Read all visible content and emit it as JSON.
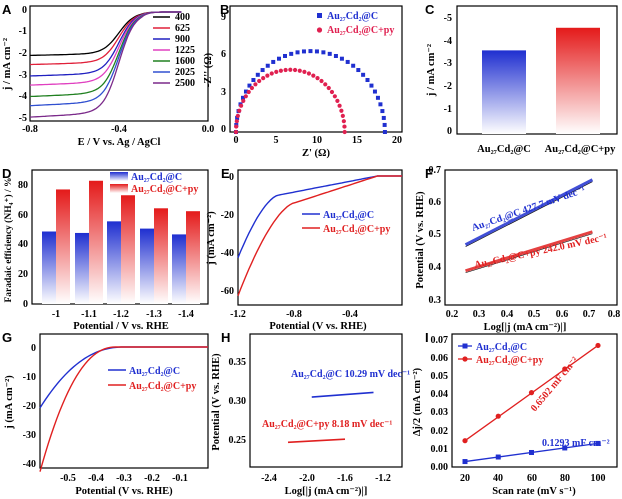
{
  "panels": {
    "A": {
      "letter": "A",
      "xlabel": "E / V vs. Ag / AgCl",
      "ylabel": "j / mA cm⁻²",
      "xticks": [
        "-0.8",
        "-0.4",
        "0.0"
      ],
      "yticks": [
        "0",
        "-1",
        "-2",
        "-3",
        "-4",
        "-5"
      ],
      "legend": [
        "400",
        "625",
        "900",
        "1225",
        "1600",
        "2025",
        "2500"
      ],
      "colors": [
        "#000000",
        "#e0203a",
        "#2020c0",
        "#e040c0",
        "#208020",
        "#3050d0",
        "#7b2a8a"
      ]
    },
    "B": {
      "letter": "B",
      "xlabel": "Z' (Ω)",
      "ylabel": "-Z'' (Ω)",
      "xticks": [
        "0",
        "5",
        "10",
        "15",
        "20"
      ],
      "yticks": [
        "0",
        "3",
        "6",
        "9"
      ],
      "legend": [
        "Au₂₇Cd₂@C",
        "Au₂₇Cd₂@C+py"
      ]
    },
    "C": {
      "letter": "C",
      "ylabel": "j / mA cm⁻²",
      "yticks": [
        "0",
        "-1",
        "-2",
        "-3",
        "-4",
        "-5"
      ],
      "categories": [
        "Au₂₇Cd₂@C",
        "Au₂₇Cd₂@C+py"
      ]
    },
    "D": {
      "letter": "D",
      "xlabel": "Potential / V vs. RHE",
      "ylabel": "Faradaic efficiency (NH₄⁺) / %",
      "xticks": [
        "-1",
        "-1.1",
        "-1.2",
        "-1.3",
        "-1.4"
      ],
      "yticks": [
        "0",
        "20",
        "40",
        "60",
        "80"
      ],
      "legend": [
        "Au₂₇Cd₂@C",
        "Au₂₇Cd₂@C+py"
      ]
    },
    "E": {
      "letter": "E",
      "xlabel": "Potential (V vs. RHE)",
      "ylabel": "j (mA cm⁻²)",
      "xticks": [
        "-1.2",
        "-0.8",
        "-0.4"
      ],
      "yticks": [
        "0",
        "-20",
        "-40",
        "-60"
      ],
      "legend": [
        "Au₂₇Cd₂@C",
        "Au₂₇Cd₂@C+py"
      ]
    },
    "F": {
      "letter": "F",
      "xlabel": "Log[|j (mA cm⁻²)|]",
      "ylabel": "Potential (V vs. RHE)",
      "xticks": [
        "0.2",
        "0.3",
        "0.4",
        "0.5",
        "0.6",
        "0.7",
        "0.8"
      ],
      "yticks": [
        "0.3",
        "0.4",
        "0.5",
        "0.6",
        "0.7"
      ],
      "ann1": "Au₂₇Cd₂@C 427.7 mV dec⁻¹",
      "ann2": "Au₂₇Cd₂@C+py 242.0 mV dec⁻¹"
    },
    "G": {
      "letter": "G",
      "xlabel": "Potential (V vs. RHE)",
      "ylabel": "j (mA cm⁻²)",
      "xticks": [
        "-0.5",
        "-0.4",
        "-0.3",
        "-0.2",
        "-0.1"
      ],
      "yticks": [
        "0",
        "-10",
        "-20",
        "-30",
        "-40"
      ],
      "legend": [
        "Au₂₇Cd₂@C",
        "Au₂₇Cd₂@C+py"
      ]
    },
    "H": {
      "letter": "H",
      "xlabel": "Log[|j (mA cm⁻²)|]",
      "ylabel": "Potential (V vs. RHE)",
      "xticks": [
        "-2.4",
        "-2.0",
        "-1.6",
        "-1.2"
      ],
      "yticks": [
        "0.25",
        "0.30",
        "0.35"
      ],
      "ann1": "Au₂₇Cd₂@C 10.29 mV dec⁻¹",
      "ann2": "Au₂₇Cd₂@C+py 8.18 mV dec⁻¹"
    },
    "I": {
      "letter": "I",
      "xlabel": "Scan rate (mV s⁻¹)",
      "ylabel": "Δj/2 (mA cm⁻²)",
      "xticks": [
        "20",
        "40",
        "60",
        "80",
        "100"
      ],
      "yticks": [
        "0.00",
        "0.01",
        "0.02",
        "0.03",
        "0.04",
        "0.05",
        "0.06",
        "0.07"
      ],
      "legend": [
        "Au₂₇Cd₂@C",
        "Au₂₇Cd₂@C+py"
      ],
      "ann1": "0.6502 mF cm⁻²",
      "ann2": "0.1293 mF cm⁻²"
    }
  },
  "chart_data": [
    {
      "type": "line",
      "title": "A",
      "xlim": [
        -0.8,
        0.0
      ],
      "ylim": [
        -5,
        0.3
      ],
      "series_names": [
        "400",
        "625",
        "900",
        "1225",
        "1600",
        "2025",
        "2500"
      ],
      "limiting_current": [
        -1.9,
        -2.3,
        -2.8,
        -3.2,
        -3.7,
        -4.1,
        -4.6
      ]
    },
    {
      "type": "scatter",
      "title": "B",
      "xlim": [
        0,
        20
      ],
      "ylim": [
        0,
        9
      ],
      "series": [
        {
          "name": "Au27Cd2@C",
          "diameter": 18.5,
          "peak": 6.5
        },
        {
          "name": "Au27Cd2@C+py",
          "diameter": 13.5,
          "peak": 5.0
        }
      ]
    },
    {
      "type": "bar",
      "title": "C",
      "categories": [
        "Au27Cd2@C",
        "Au27Cd2@C+py"
      ],
      "values": [
        -3.7,
        -4.7
      ],
      "ylim": [
        0,
        -5.6
      ]
    },
    {
      "type": "bar",
      "title": "D",
      "categories": [
        "-1",
        "-1.1",
        "-1.2",
        "-1.3",
        "-1.4"
      ],
      "series": [
        {
          "name": "Au27Cd2@C",
          "values": [
            50,
            49,
            57,
            52,
            48
          ]
        },
        {
          "name": "Au27Cd2@C+py",
          "values": [
            79,
            85,
            75,
            66,
            64
          ]
        }
      ],
      "ylim": [
        0,
        90
      ]
    },
    {
      "type": "line",
      "title": "E",
      "xlim": [
        -1.2,
        -0.2
      ],
      "ylim": [
        -68,
        3
      ],
      "series": [
        {
          "name": "Au27Cd2@C",
          "min": -43
        },
        {
          "name": "Au27Cd2@C+py",
          "min": -63
        }
      ]
    },
    {
      "type": "line",
      "title": "F",
      "xlim": [
        0.2,
        0.8
      ],
      "ylim": [
        0.3,
        0.72
      ],
      "series": [
        {
          "name": "Au27Cd2@C",
          "x": [
            0.25,
            0.72
          ],
          "y": [
            0.47,
            0.67
          ]
        },
        {
          "name": "Au27Cd2@C+py",
          "x": [
            0.25,
            0.72
          ],
          "y": [
            0.39,
            0.51
          ]
        }
      ]
    },
    {
      "type": "line",
      "title": "G",
      "xlim": [
        -0.6,
        0.0
      ],
      "ylim": [
        -45,
        2
      ],
      "series": [
        {
          "name": "Au27Cd2@C",
          "min": -21
        },
        {
          "name": "Au27Cd2@C+py",
          "min": -43
        }
      ]
    },
    {
      "type": "line",
      "title": "H",
      "xlim": [
        -2.6,
        -1.0
      ],
      "ylim": [
        0.2,
        0.37
      ],
      "series": [
        {
          "name": "Au27Cd2@C",
          "x": [
            -1.95,
            -1.3
          ],
          "y": [
            0.305,
            0.311
          ]
        },
        {
          "name": "Au27Cd2@C+py",
          "x": [
            -2.2,
            -1.6
          ],
          "y": [
            0.247,
            0.251
          ]
        }
      ]
    },
    {
      "type": "scatter",
      "title": "I",
      "xlim": [
        10,
        110
      ],
      "ylim": [
        0,
        0.07
      ],
      "x": [
        20,
        40,
        60,
        80,
        100
      ],
      "series": [
        {
          "name": "Au27Cd2@C",
          "values": [
            0.003,
            0.0055,
            0.008,
            0.0105,
            0.013
          ]
        },
        {
          "name": "Au27Cd2@C+py",
          "values": [
            0.0145,
            0.028,
            0.041,
            0.054,
            0.067
          ]
        }
      ]
    }
  ]
}
